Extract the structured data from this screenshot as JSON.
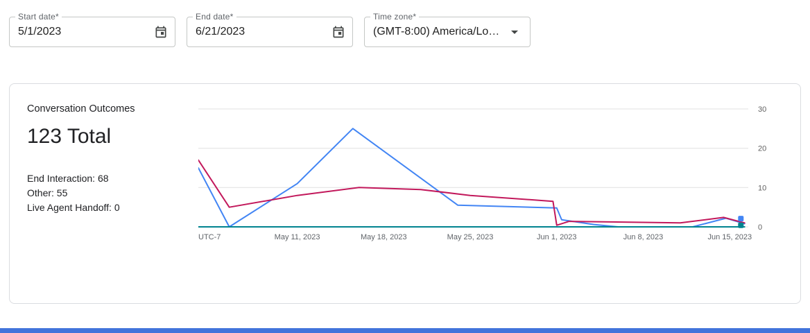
{
  "filters": {
    "start_date": {
      "label": "Start date*",
      "value": "5/1/2023"
    },
    "end_date": {
      "label": "End date*",
      "value": "6/21/2023"
    },
    "time_zone": {
      "label": "Time zone*",
      "value": "(GMT-8:00) America/Lo…"
    }
  },
  "card": {
    "title": "Conversation Outcomes",
    "total": "123 Total",
    "stats": [
      "End Interaction: 68",
      "Other: 55",
      "Live Agent Handoff: 0"
    ]
  },
  "chart_data": {
    "type": "line",
    "title": "Conversation Outcomes",
    "x_unit": "days since 2023-05-01",
    "x_domain": [
      2,
      46.5
    ],
    "y_domain": [
      0,
      30
    ],
    "y_ticks": [
      0,
      10,
      20,
      30
    ],
    "x_ticks": [
      {
        "d": 10,
        "label": "May 11, 2023"
      },
      {
        "d": 17,
        "label": "May 18, 2023"
      },
      {
        "d": 24,
        "label": "May 25, 2023"
      },
      {
        "d": 31,
        "label": "Jun 1, 2023"
      },
      {
        "d": 38,
        "label": "Jun 8, 2023"
      },
      {
        "d": 45,
        "label": "Jun 15, 2023"
      }
    ],
    "corner_label": "UTC-7",
    "grid": true,
    "legend": "none",
    "series": [
      {
        "name": "End Interaction",
        "color": "#4285f4",
        "points": [
          [
            2,
            15
          ],
          [
            4.5,
            0
          ],
          [
            10,
            11
          ],
          [
            14.5,
            25
          ],
          [
            23,
            5.5
          ],
          [
            31,
            4.8
          ],
          [
            31.4,
            1.8
          ],
          [
            34,
            0.6
          ],
          [
            36,
            0
          ],
          [
            42,
            0
          ],
          [
            44.7,
            2.2
          ],
          [
            46.2,
            0.8
          ]
        ]
      },
      {
        "name": "Other",
        "color": "#c2185b",
        "points": [
          [
            2,
            17
          ],
          [
            4.5,
            5
          ],
          [
            10,
            8
          ],
          [
            15,
            10
          ],
          [
            20,
            9.5
          ],
          [
            24,
            8
          ],
          [
            30.7,
            6.5
          ],
          [
            31,
            0.4
          ],
          [
            32,
            1.4
          ],
          [
            41,
            1
          ],
          [
            44.5,
            2.4
          ],
          [
            46.2,
            1
          ]
        ]
      },
      {
        "name": "Live Agent Handoff",
        "color": "#00838f",
        "points": [
          [
            2,
            0
          ],
          [
            46.2,
            0
          ]
        ]
      }
    ],
    "end_markers": [
      {
        "series": "End Interaction",
        "color": "#4285f4",
        "x": 45.9,
        "y": 2.1
      },
      {
        "series": "Live Agent Handoff",
        "color": "#00838f",
        "x": 45.9,
        "y": 0.4
      }
    ]
  },
  "colors": {
    "grid": "#e0e0e0",
    "axis_text": "#5f6368",
    "bottom_bar": "#4274db"
  }
}
